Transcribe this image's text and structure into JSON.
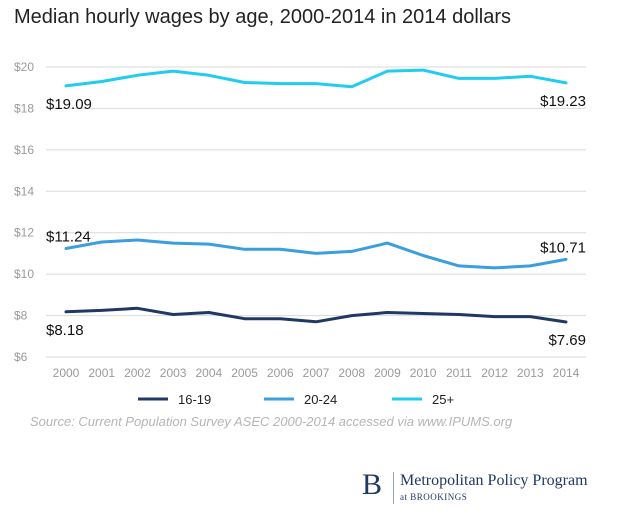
{
  "chart_data": {
    "type": "line",
    "title": "Median hourly wages by age, 2000-2014 in 2014 dollars",
    "xlabel": "",
    "ylabel": "",
    "ylim": [
      6,
      20
    ],
    "y_ticks": [
      6,
      8,
      10,
      12,
      14,
      16,
      18,
      20
    ],
    "y_tick_labels": [
      "$6",
      "$8",
      "$10",
      "$12",
      "$14",
      "$16",
      "$18",
      "$20"
    ],
    "categories": [
      "2000",
      "2001",
      "2002",
      "2003",
      "2004",
      "2005",
      "2006",
      "2007",
      "2008",
      "2009",
      "2010",
      "2011",
      "2012",
      "2013",
      "2014"
    ],
    "series": [
      {
        "name": "16-19",
        "color": "#1f3864",
        "values": [
          8.18,
          8.25,
          8.35,
          8.05,
          8.15,
          7.85,
          7.85,
          7.7,
          8.0,
          8.15,
          8.1,
          8.05,
          7.95,
          7.95,
          7.69
        ],
        "start_label": "$8.18",
        "end_label": "$7.69"
      },
      {
        "name": "20-24",
        "color": "#3b9ede",
        "values": [
          11.24,
          11.55,
          11.65,
          11.5,
          11.45,
          11.2,
          11.2,
          11.0,
          11.1,
          11.5,
          10.9,
          10.4,
          10.3,
          10.4,
          10.71
        ],
        "start_label": "$11.24",
        "end_label": "$10.71"
      },
      {
        "name": "25+",
        "color": "#20ccf0",
        "values": [
          19.09,
          19.3,
          19.6,
          19.8,
          19.6,
          19.25,
          19.2,
          19.2,
          19.05,
          19.8,
          19.85,
          19.45,
          19.45,
          19.55,
          19.23
        ],
        "start_label": "$19.09",
        "end_label": "$19.23"
      }
    ],
    "legend_position": "bottom",
    "grid": true
  },
  "source": "Source: Current Population Survey ASEC 2000-2014 accessed via www.IPUMS.org",
  "logo": {
    "letter": "B",
    "program": "Metropolitan Policy Program",
    "sub": "at BROOKINGS"
  }
}
